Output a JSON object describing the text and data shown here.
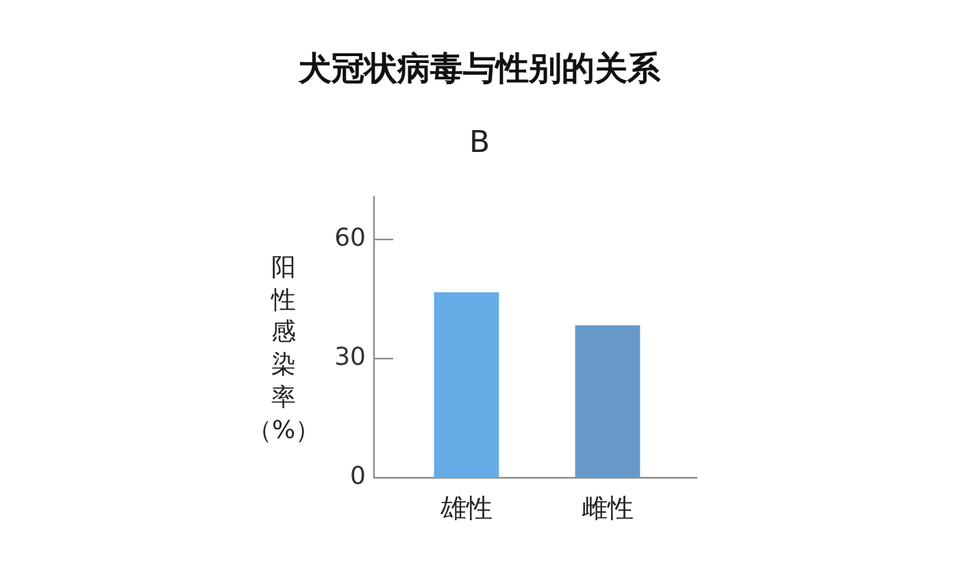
{
  "chart_data": {
    "type": "bar",
    "title": "犬冠状病毒与性别的关系",
    "subtitle": "B",
    "ylabel": "阳性感染率（%）",
    "categories": [
      "雄性",
      "雌性"
    ],
    "values": [
      46.7,
      38.4
    ],
    "colors": [
      "#65abe6",
      "#6699ca"
    ],
    "ylim": [
      0,
      71
    ],
    "yticks": [
      0,
      30,
      60
    ]
  }
}
